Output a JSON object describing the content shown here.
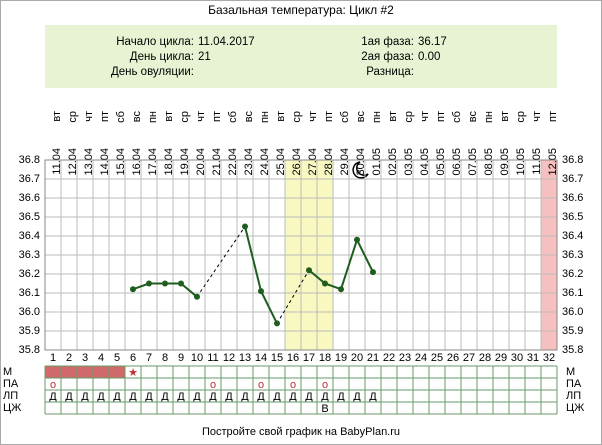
{
  "chart_data": {
    "type": "line",
    "title": "Базальная температура: Цикл #2",
    "info": {
      "left": [
        {
          "label": "Начало цикла:",
          "value": "11.04.2017"
        },
        {
          "label": "День цикла:",
          "value": "21"
        },
        {
          "label": "День овуляции:"
        }
      ],
      "right": [
        {
          "label": "1ая фаза:",
          "value": "36.17"
        },
        {
          "label": "2ая фаза:",
          "value": "0.00"
        },
        {
          "label": "Разница:"
        }
      ]
    },
    "x": [
      1,
      2,
      3,
      4,
      5,
      6,
      7,
      8,
      9,
      10,
      11,
      12,
      13,
      14,
      15,
      16,
      17,
      18,
      19,
      20,
      21,
      22,
      23,
      24,
      25,
      26,
      27,
      28,
      29,
      30,
      31,
      32
    ],
    "categories": [
      "11.04",
      "12.04",
      "13.04",
      "14.04",
      "15.04",
      "16.04",
      "17.04",
      "18.04",
      "19.04",
      "20.04",
      "21.04",
      "22.04",
      "23.04",
      "24.04",
      "25.04",
      "26.04",
      "27.04",
      "28.04",
      "29.04",
      "30.04",
      "01.05",
      "02.05",
      "03.05",
      "04.05",
      "05.05",
      "06.05",
      "07.05",
      "08.05",
      "09.05",
      "10.05",
      "11.05",
      "12.05"
    ],
    "weekdays": [
      "вт",
      "ср",
      "чт",
      "пт",
      "сб",
      "вс",
      "пн",
      "вт",
      "ср",
      "чт",
      "пт",
      "сб",
      "вс",
      "пн",
      "вт",
      "ср",
      "чт",
      "пт",
      "сб",
      "вс",
      "пн",
      "вт",
      "ср",
      "чт",
      "пт",
      "сб",
      "вс",
      "пн",
      "вт",
      "ср",
      "чт",
      "пт"
    ],
    "series": [
      {
        "color": "#1e5e1e",
        "values": [
          null,
          null,
          null,
          null,
          null,
          36.12,
          36.15,
          36.15,
          36.15,
          36.08,
          null,
          null,
          36.45,
          36.11,
          35.94,
          null,
          36.22,
          36.15,
          36.12,
          36.38,
          36.21,
          null,
          null,
          null,
          null,
          null,
          null,
          null,
          null,
          null,
          null,
          null
        ]
      }
    ],
    "ylim": [
      35.8,
      36.8
    ],
    "yticks": [
      35.8,
      35.9,
      {
        "value": 36,
        "label": "36.0"
      },
      36.1,
      36.2,
      36.3,
      36.4,
      36.5,
      36.6,
      36.7,
      36.8
    ],
    "grid": true,
    "rows": [
      {
        "label": "М",
        "cells": [
          null,
          null,
          null,
          null,
          null,
          "★",
          null,
          null,
          null,
          null,
          null,
          null,
          null,
          null,
          null,
          null,
          null,
          null,
          null,
          null,
          null,
          null,
          null,
          null,
          null,
          null,
          null,
          null,
          null,
          null,
          null,
          null
        ]
      },
      {
        "label": "ПА",
        "cells": [
          "o",
          null,
          null,
          null,
          null,
          null,
          null,
          null,
          null,
          null,
          "o",
          null,
          null,
          "o",
          null,
          "o",
          null,
          "o",
          null,
          null,
          null,
          null,
          null,
          null,
          null,
          null,
          null,
          null,
          null,
          null,
          null,
          null
        ]
      },
      {
        "label": "ЛП",
        "cells": [
          "Д",
          "Д",
          "Д",
          "Д",
          "Д",
          "Д",
          "Д",
          "Д",
          "Д",
          "Д",
          "Д",
          "Д",
          "Д",
          "Д",
          "Д",
          "Д",
          "Д",
          "Д",
          "Д",
          "Д",
          "Д",
          null,
          null,
          null,
          null,
          null,
          null,
          null,
          null,
          null,
          null,
          null
        ]
      },
      {
        "label": "ЦЖ",
        "cells": [
          null,
          null,
          null,
          null,
          null,
          null,
          null,
          null,
          null,
          null,
          null,
          null,
          null,
          null,
          null,
          null,
          null,
          "В",
          null,
          null,
          null,
          null,
          null,
          null,
          null,
          null,
          null,
          null,
          null,
          null,
          null,
          null
        ]
      }
    ],
    "footer": "Постройте свой график на BabyPlan.ru"
  }
}
